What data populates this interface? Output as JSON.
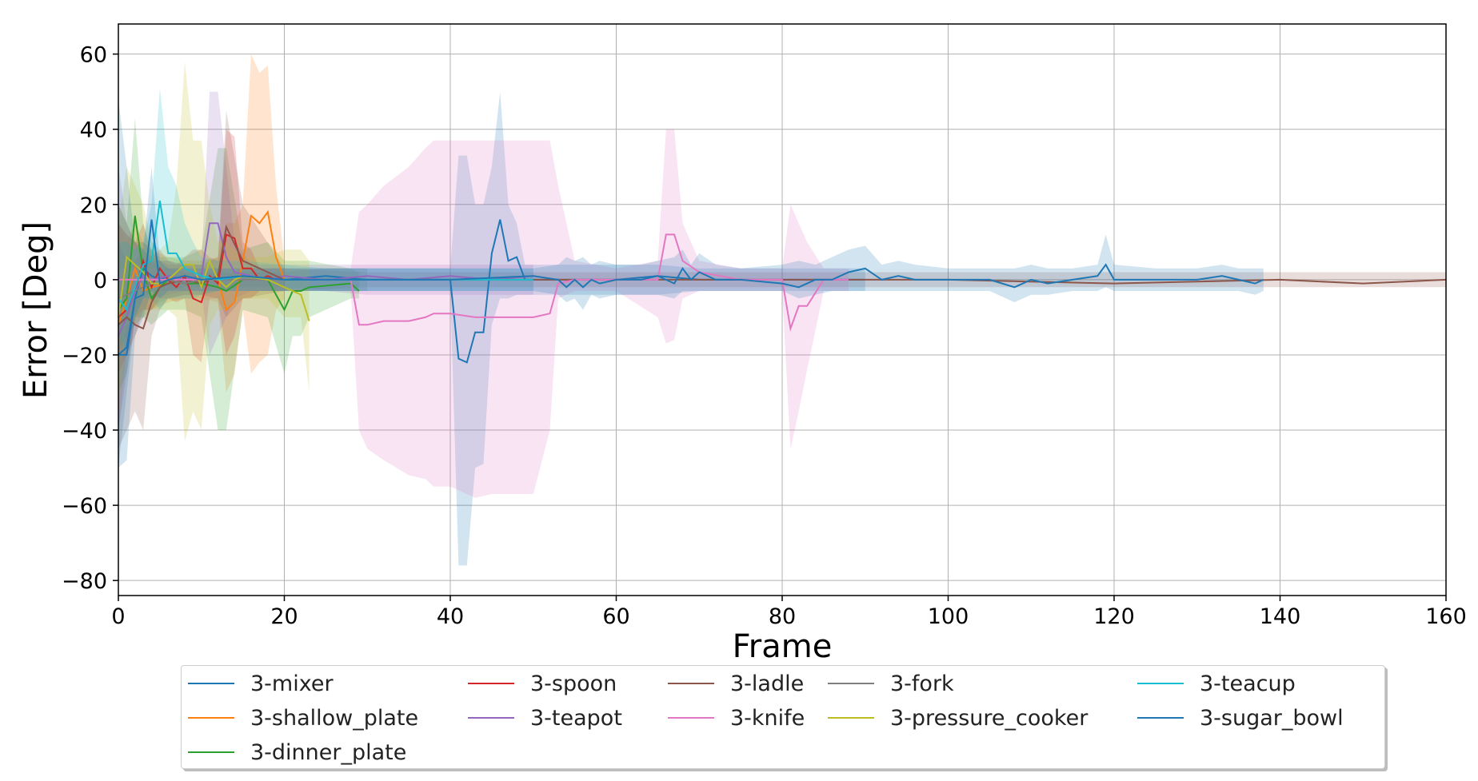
{
  "chart_data": {
    "type": "line",
    "xlabel": "Frame",
    "ylabel": "Error [Deg]",
    "xlim": [
      0,
      160
    ],
    "ylim": [
      -84,
      68
    ],
    "xticks": [
      0,
      20,
      40,
      60,
      80,
      100,
      120,
      140,
      160
    ],
    "yticks": [
      60,
      40,
      20,
      0,
      -20,
      -40,
      -60,
      -80
    ],
    "grid": true,
    "legend_position": "bottom-center",
    "series": [
      {
        "name": "3-mixer",
        "color": "#1f77b4",
        "x": [
          0,
          1,
          2,
          3,
          4,
          5,
          6,
          8,
          10,
          12,
          15,
          20,
          25,
          30,
          35,
          40,
          41,
          42,
          43,
          44,
          45,
          46,
          47,
          48,
          49,
          50,
          55,
          60,
          65,
          70,
          75,
          80,
          85,
          90
        ],
        "y": [
          -20,
          -18,
          -5,
          3,
          1,
          0,
          1,
          0,
          1,
          0,
          1,
          0,
          1,
          0,
          0,
          0,
          -21,
          -22,
          -14,
          -14,
          7,
          16,
          5,
          6,
          0,
          0,
          0,
          0,
          1,
          0,
          0,
          0,
          0,
          0
        ],
        "band": [
          -50,
          -30,
          -10,
          -5,
          -3,
          -3,
          -3,
          -2,
          -2,
          -2,
          -2,
          -2,
          -3,
          -3,
          -3,
          -3,
          -76,
          -76,
          -50,
          -49,
          -12,
          -5,
          -5,
          -4,
          -4,
          -4,
          -4,
          -4,
          -4,
          -3,
          -3,
          -3,
          -3,
          -3
        ],
        "band_hi": [
          10,
          5,
          5,
          8,
          5,
          3,
          3,
          2,
          2,
          2,
          2,
          2,
          3,
          3,
          3,
          3,
          33,
          33,
          20,
          20,
          30,
          50,
          20,
          15,
          4,
          4,
          4,
          4,
          4,
          3,
          3,
          3,
          3,
          3
        ]
      },
      {
        "name": "3-shallow_plate",
        "color": "#ff7f0e",
        "x": [
          0,
          1,
          2,
          3,
          4,
          6,
          8,
          10,
          12,
          13,
          14,
          15,
          16,
          17,
          18,
          19,
          20
        ],
        "y": [
          -12,
          -5,
          3,
          -3,
          -2,
          -1,
          1,
          0,
          0,
          -8,
          -6,
          5,
          17,
          15,
          18,
          6,
          0
        ],
        "band": [
          -40,
          -20,
          -10,
          -8,
          -8,
          -6,
          -5,
          -5,
          -6,
          -30,
          -25,
          -8,
          -25,
          -22,
          -20,
          -8,
          -5
        ],
        "band_hi": [
          15,
          10,
          15,
          10,
          8,
          6,
          5,
          5,
          6,
          15,
          15,
          20,
          60,
          55,
          57,
          25,
          5
        ]
      },
      {
        "name": "3-dinner_plate",
        "color": "#2ca02c",
        "x": [
          0,
          1,
          2,
          3,
          4,
          5,
          6,
          8,
          10,
          12,
          13,
          15,
          18,
          20,
          21,
          22,
          23,
          28,
          29
        ],
        "y": [
          -8,
          -5,
          17,
          2,
          -5,
          -2,
          0,
          -1,
          -1,
          -2,
          -3,
          0,
          0,
          -8,
          -3,
          -3,
          -2,
          -1,
          -3
        ],
        "band": [
          -30,
          -25,
          -10,
          -10,
          -12,
          -10,
          -8,
          -8,
          -10,
          -40,
          -40,
          -8,
          -10,
          -25,
          -15,
          -15,
          -10,
          -5,
          -5
        ],
        "band_hi": [
          20,
          15,
          43,
          15,
          8,
          6,
          6,
          6,
          8,
          35,
          35,
          8,
          10,
          5,
          5,
          5,
          5,
          3,
          2
        ]
      },
      {
        "name": "3-spoon",
        "color": "#d62728",
        "x": [
          0,
          1,
          2,
          3,
          4,
          5,
          6,
          7,
          8,
          9,
          10,
          11,
          12,
          13,
          14,
          15,
          16,
          17,
          18,
          19,
          20
        ],
        "y": [
          -10,
          -8,
          -3,
          5,
          -2,
          3,
          0,
          -2,
          1,
          -5,
          -6,
          1,
          -1,
          12,
          11,
          3,
          3,
          0,
          1,
          0,
          0
        ],
        "band": [
          -25,
          -20,
          -15,
          -8,
          -8,
          -5,
          -5,
          -6,
          -5,
          -20,
          -22,
          -5,
          -5,
          -20,
          -15,
          -5,
          -5,
          -3,
          -3,
          -3,
          -3
        ],
        "band_hi": [
          15,
          12,
          10,
          15,
          6,
          8,
          5,
          4,
          6,
          8,
          8,
          6,
          5,
          40,
          38,
          10,
          8,
          3,
          3,
          3,
          3
        ]
      },
      {
        "name": "3-teapot",
        "color": "#9467bd",
        "x": [
          0,
          1,
          2,
          3,
          4,
          6,
          8,
          10,
          11,
          12,
          13,
          14,
          16,
          18,
          20,
          25,
          30,
          35,
          40,
          45,
          50
        ],
        "y": [
          -15,
          -10,
          -3,
          1,
          0,
          1,
          0,
          1,
          15,
          15,
          6,
          2,
          1,
          0,
          1,
          0,
          1,
          0,
          1,
          0,
          1
        ],
        "band": [
          -40,
          -25,
          -10,
          -5,
          -5,
          -4,
          -3,
          -3,
          -20,
          -15,
          -10,
          -5,
          -3,
          -3,
          -3,
          -3,
          -4,
          -4,
          -4,
          -4,
          -4
        ],
        "band_hi": [
          30,
          15,
          10,
          6,
          5,
          5,
          4,
          4,
          50,
          50,
          30,
          10,
          4,
          4,
          4,
          4,
          4,
          4,
          4,
          4,
          4
        ]
      },
      {
        "name": "3-ladle",
        "color": "#8c564b",
        "x": [
          0,
          1,
          2,
          3,
          4,
          5,
          6,
          8,
          10,
          12,
          13,
          15,
          20,
          30,
          40,
          60,
          80,
          100,
          120,
          140,
          150,
          160
        ],
        "y": [
          -12,
          -10,
          -12,
          -13,
          -6,
          -2,
          -1,
          0,
          -1,
          1,
          14,
          5,
          0,
          0,
          0,
          0,
          0,
          0,
          -1,
          0,
          -1,
          0
        ],
        "band": [
          -45,
          -40,
          -35,
          -40,
          -15,
          -8,
          -5,
          -4,
          -4,
          -5,
          -10,
          -5,
          -3,
          -2,
          -2,
          -2,
          -2,
          -2,
          -2,
          -2,
          -2,
          -2
        ],
        "band_hi": [
          20,
          15,
          10,
          10,
          8,
          5,
          4,
          4,
          4,
          6,
          45,
          20,
          3,
          2,
          2,
          2,
          2,
          2,
          2,
          2,
          2,
          2
        ]
      },
      {
        "name": "3-knife",
        "color": "#e377c2",
        "x": [
          0,
          5,
          10,
          20,
          28,
          29,
          30,
          32,
          35,
          37,
          38,
          40,
          43,
          45,
          50,
          52,
          53,
          55,
          60,
          65,
          66,
          67,
          68,
          70,
          75,
          80,
          81,
          82,
          83,
          85,
          88
        ],
        "y": [
          0,
          0,
          0,
          0,
          0,
          -12,
          -12,
          -11,
          -11,
          -10,
          -9,
          -9,
          -10,
          -10,
          -10,
          -9,
          -1,
          0,
          0,
          0,
          12,
          12,
          5,
          2,
          0,
          0,
          -13,
          -7,
          -7,
          0,
          0
        ],
        "band": [
          -3,
          -3,
          -3,
          -3,
          -3,
          -40,
          -45,
          -48,
          -52,
          -53,
          -55,
          -55,
          -58,
          -57,
          -57,
          -40,
          -5,
          -3,
          -3,
          -10,
          -17,
          -16,
          -5,
          -3,
          -3,
          -3,
          -45,
          -35,
          -24,
          -3,
          -3
        ],
        "band_hi": [
          3,
          3,
          3,
          3,
          3,
          18,
          20,
          25,
          30,
          35,
          37,
          37,
          37,
          37,
          37,
          37,
          25,
          5,
          3,
          5,
          40,
          40,
          15,
          5,
          3,
          3,
          20,
          15,
          10,
          3,
          3
        ]
      },
      {
        "name": "3-fork",
        "color": "#7f7f7f",
        "x": [
          0,
          1,
          2,
          3,
          4,
          5,
          6,
          8,
          10,
          12,
          15,
          20,
          25,
          30
        ],
        "y": [
          -5,
          -4,
          -3,
          -2,
          -1,
          -1,
          0,
          -1,
          0,
          0,
          0,
          0,
          0,
          0
        ],
        "band": [
          -20,
          -15,
          -12,
          -10,
          -8,
          -6,
          -5,
          -4,
          -4,
          -3,
          -3,
          -3,
          -3,
          -3
        ],
        "band_hi": [
          15,
          12,
          10,
          8,
          6,
          5,
          5,
          4,
          4,
          3,
          3,
          3,
          3,
          3
        ]
      },
      {
        "name": "3-pressure_cooker",
        "color": "#bcbd22",
        "x": [
          0,
          1,
          2,
          3,
          4,
          5,
          6,
          7,
          8,
          9,
          10,
          11,
          12,
          13,
          14,
          15,
          18,
          20,
          21,
          22,
          23
        ],
        "y": [
          -10,
          6,
          4,
          2,
          -1,
          -1,
          0,
          2,
          4,
          4,
          -2,
          5,
          0,
          -2,
          0,
          1,
          0,
          -2,
          -3,
          -4,
          -11
        ],
        "band": [
          -35,
          -12,
          -12,
          -10,
          -8,
          -8,
          -8,
          -10,
          -43,
          -35,
          -40,
          -12,
          -8,
          -8,
          -6,
          -5,
          -5,
          -10,
          -10,
          -10,
          -30
        ],
        "band_hi": [
          15,
          30,
          25,
          20,
          10,
          8,
          10,
          25,
          58,
          37,
          37,
          20,
          10,
          10,
          8,
          6,
          6,
          8,
          8,
          8,
          5
        ]
      },
      {
        "name": "3-teacup",
        "color": "#17becf",
        "x": [
          0,
          1,
          2,
          3,
          4,
          5,
          6,
          7,
          8,
          9,
          10,
          12,
          15,
          20,
          25,
          30,
          40,
          50
        ],
        "y": [
          -5,
          -8,
          -2,
          4,
          5,
          21,
          7,
          7,
          3,
          2,
          1,
          0,
          1,
          0,
          0,
          0,
          0,
          0
        ],
        "band": [
          -15,
          -20,
          -10,
          -5,
          -5,
          -8,
          -5,
          -5,
          -5,
          -5,
          -4,
          -3,
          -3,
          -3,
          -3,
          -3,
          -3,
          -3
        ],
        "band_hi": [
          10,
          10,
          8,
          10,
          20,
          51,
          30,
          25,
          15,
          10,
          6,
          5,
          5,
          4,
          3,
          3,
          3,
          3
        ]
      },
      {
        "name": "3-sugar_bowl",
        "color": "#1f77b4",
        "x": [
          0,
          1,
          2,
          3,
          4,
          5,
          6,
          8,
          10,
          15,
          20,
          30,
          40,
          50,
          53,
          54,
          55,
          56,
          57,
          58,
          60,
          63,
          65,
          67,
          68,
          69,
          70,
          72,
          75,
          80,
          82,
          84,
          86,
          88,
          90,
          92,
          94,
          96,
          100,
          105,
          108,
          110,
          112,
          115,
          118,
          119,
          120,
          125,
          130,
          133,
          135,
          137,
          138
        ],
        "y": [
          -20,
          -20,
          -5,
          -4,
          16,
          -1,
          0,
          1,
          0,
          1,
          0,
          0,
          0,
          1,
          0,
          -2,
          0,
          -2,
          0,
          -1,
          0,
          0,
          1,
          -1,
          3,
          0,
          2,
          0,
          0,
          -1,
          -2,
          0,
          0,
          2,
          3,
          0,
          1,
          0,
          0,
          0,
          -2,
          0,
          -1,
          0,
          1,
          4,
          0,
          0,
          0,
          1,
          0,
          -1,
          0
        ],
        "band": [
          -50,
          -48,
          -15,
          -10,
          -3,
          -5,
          -3,
          -3,
          -3,
          -3,
          -3,
          -3,
          -3,
          -3,
          -4,
          -6,
          -5,
          -8,
          -4,
          -5,
          -4,
          -4,
          -4,
          -5,
          -3,
          -3,
          -3,
          -3,
          -3,
          -3,
          -5,
          -4,
          -3,
          -3,
          -3,
          -3,
          -3,
          -3,
          -3,
          -3,
          -6,
          -4,
          -4,
          -3,
          -3,
          -2,
          -3,
          -3,
          -3,
          -3,
          -3,
          -4,
          -3
        ],
        "band_hi": [
          48,
          30,
          10,
          8,
          30,
          5,
          3,
          3,
          3,
          3,
          3,
          3,
          3,
          3,
          4,
          6,
          5,
          6,
          4,
          5,
          4,
          4,
          5,
          6,
          8,
          4,
          7,
          4,
          3,
          4,
          5,
          4,
          6,
          8,
          9,
          4,
          5,
          4,
          3,
          3,
          3,
          4,
          3,
          3,
          4,
          12,
          4,
          3,
          3,
          4,
          3,
          3,
          3
        ]
      }
    ]
  }
}
